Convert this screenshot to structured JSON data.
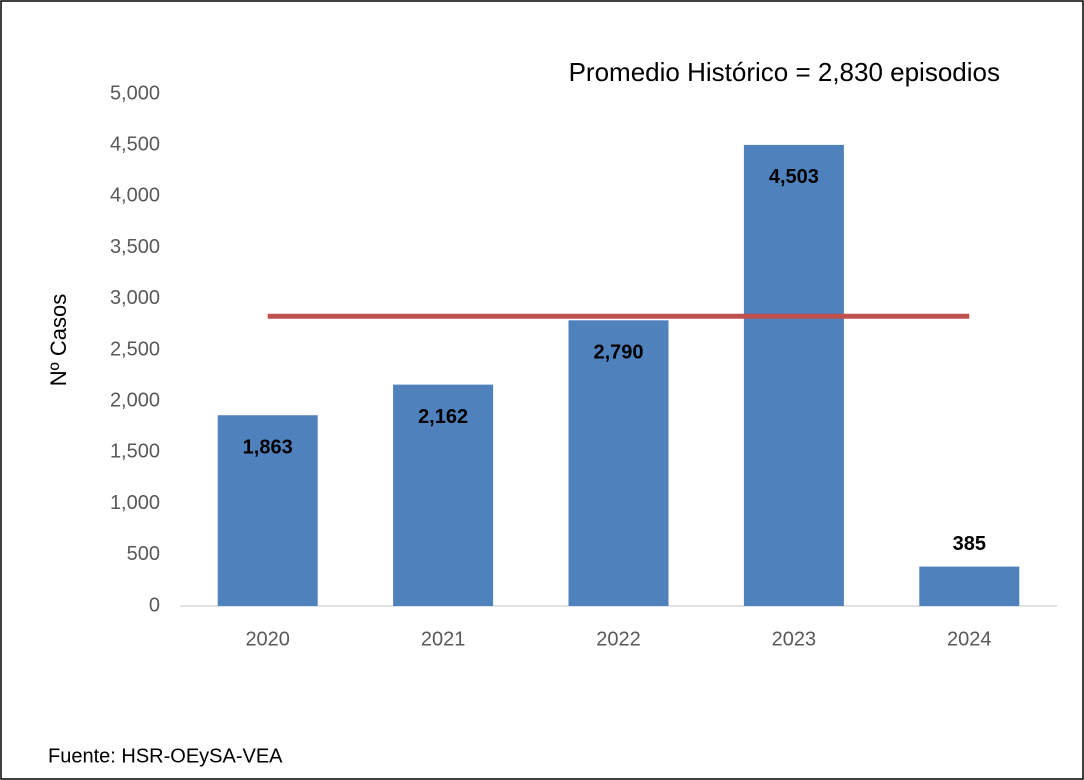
{
  "chart_data": {
    "type": "bar",
    "annotation": "Promedio Histórico = 2,830 episodios",
    "y_label": "Nº  Casos",
    "source": "Fuente: HSR-OEySA-VEA",
    "categories": [
      "2020",
      "2021",
      "2022",
      "2023",
      "2024"
    ],
    "values": [
      1863,
      2162,
      2790,
      4503,
      385
    ],
    "value_labels": [
      "1,863",
      "2,162",
      "2,790",
      "4,503",
      "385"
    ],
    "color": "#4f81bd",
    "reference_value": 2830,
    "reference_color": "#c0504d",
    "ylim": [
      0,
      5000
    ],
    "yticks": [
      0,
      500,
      {
        "value": 1000,
        "label": "1,000"
      },
      {
        "value": 1500,
        "label": "1,500"
      },
      {
        "value": 2000,
        "label": "2,000"
      },
      {
        "value": 2500,
        "label": "2,500"
      },
      {
        "value": 3000,
        "label": "3,000"
      },
      {
        "value": 3500,
        "label": "3,500"
      },
      {
        "value": 4000,
        "label": "4,000"
      },
      {
        "value": 4500,
        "label": "4,500"
      },
      {
        "value": 5000,
        "label": "5,000"
      }
    ],
    "grid": false
  }
}
